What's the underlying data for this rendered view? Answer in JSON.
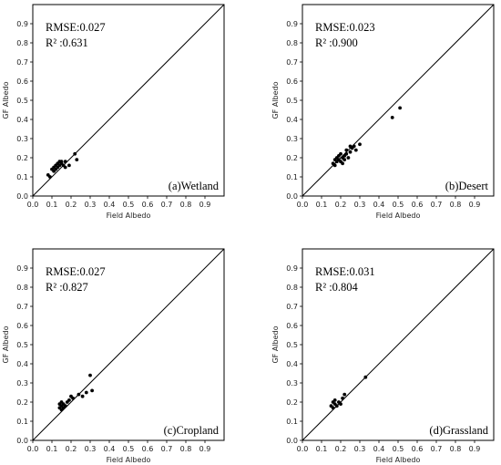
{
  "chart_data": [
    {
      "type": "scatter",
      "xlabel": "Field Albedo",
      "ylabel": "GF Albedo",
      "xlim": [
        0,
        1.0
      ],
      "ylim": [
        0,
        1.0
      ],
      "xticks": [
        "0.0",
        "0.1",
        "0.2",
        "0.3",
        "0.4",
        "0.5",
        "0.6",
        "0.7",
        "0.8",
        "0.9"
      ],
      "yticks": [
        "0.0",
        "0.1",
        "0.2",
        "0.3",
        "0.4",
        "0.5",
        "0.6",
        "0.7",
        "0.8",
        "0.9"
      ],
      "rmse_text": "RMSE:0.027",
      "r2_text": "R² :0.631",
      "label": "(a)Wetland",
      "reference_line": "1:1",
      "x": [
        0.08,
        0.09,
        0.1,
        0.11,
        0.11,
        0.12,
        0.12,
        0.13,
        0.13,
        0.14,
        0.14,
        0.15,
        0.15,
        0.16,
        0.17,
        0.17,
        0.19,
        0.22,
        0.23
      ],
      "y": [
        0.11,
        0.1,
        0.14,
        0.13,
        0.15,
        0.14,
        0.16,
        0.17,
        0.15,
        0.18,
        0.16,
        0.17,
        0.18,
        0.16,
        0.18,
        0.15,
        0.16,
        0.22,
        0.19
      ]
    },
    {
      "type": "scatter",
      "xlabel": "Field Albedo",
      "ylabel": "GF Albedo",
      "xlim": [
        0,
        1.0
      ],
      "ylim": [
        0,
        1.0
      ],
      "xticks": [
        "0.0",
        "0.1",
        "0.2",
        "0.3",
        "0.4",
        "0.5",
        "0.6",
        "0.7",
        "0.8",
        "0.9"
      ],
      "yticks": [
        "0.0",
        "0.1",
        "0.2",
        "0.3",
        "0.4",
        "0.5",
        "0.6",
        "0.7",
        "0.8",
        "0.9"
      ],
      "rmse_text": "RMSE:0.023",
      "r2_text": "R² :0.900",
      "label": "(b)Desert",
      "reference_line": "1:1",
      "x": [
        0.16,
        0.17,
        0.17,
        0.18,
        0.18,
        0.19,
        0.19,
        0.2,
        0.2,
        0.21,
        0.21,
        0.22,
        0.22,
        0.23,
        0.23,
        0.24,
        0.25,
        0.25,
        0.26,
        0.27,
        0.28,
        0.3,
        0.47,
        0.51
      ],
      "y": [
        0.17,
        0.16,
        0.19,
        0.18,
        0.2,
        0.19,
        0.21,
        0.18,
        0.22,
        0.2,
        0.17,
        0.21,
        0.19,
        0.22,
        0.24,
        0.2,
        0.23,
        0.26,
        0.25,
        0.26,
        0.24,
        0.27,
        0.41,
        0.46
      ]
    },
    {
      "type": "scatter",
      "xlabel": "Field Albedo",
      "ylabel": "GF Albedo",
      "xlim": [
        0,
        1.0
      ],
      "ylim": [
        0,
        1.0
      ],
      "xticks": [
        "0.0",
        "0.1",
        "0.2",
        "0.3",
        "0.4",
        "0.5",
        "0.6",
        "0.7",
        "0.8",
        "0.9"
      ],
      "yticks": [
        "0.0",
        "0.1",
        "0.2",
        "0.3",
        "0.4",
        "0.5",
        "0.6",
        "0.7",
        "0.8",
        "0.9"
      ],
      "rmse_text": "RMSE:0.027",
      "r2_text": "R² :0.827",
      "label": "(c)Cropland",
      "reference_line": "1:1",
      "x": [
        0.14,
        0.14,
        0.15,
        0.15,
        0.15,
        0.16,
        0.16,
        0.17,
        0.18,
        0.19,
        0.2,
        0.21,
        0.24,
        0.26,
        0.28,
        0.3,
        0.31
      ],
      "y": [
        0.17,
        0.19,
        0.16,
        0.18,
        0.2,
        0.17,
        0.19,
        0.18,
        0.2,
        0.21,
        0.23,
        0.22,
        0.24,
        0.23,
        0.25,
        0.34,
        0.26
      ]
    },
    {
      "type": "scatter",
      "xlabel": "Field Albedo",
      "ylabel": "GF Albedo",
      "xlim": [
        0,
        1.0
      ],
      "ylim": [
        0,
        1.0
      ],
      "xticks": [
        "0.0",
        "0.1",
        "0.2",
        "0.3",
        "0.4",
        "0.5",
        "0.6",
        "0.7",
        "0.8",
        "0.9"
      ],
      "yticks": [
        "0.0",
        "0.1",
        "0.2",
        "0.3",
        "0.4",
        "0.5",
        "0.6",
        "0.7",
        "0.8",
        "0.9"
      ],
      "rmse_text": "RMSE:0.031",
      "r2_text": "R² :0.804",
      "label": "(d)Grassland",
      "reference_line": "1:1",
      "x": [
        0.15,
        0.16,
        0.16,
        0.17,
        0.17,
        0.18,
        0.19,
        0.2,
        0.21,
        0.22,
        0.33
      ],
      "y": [
        0.18,
        0.2,
        0.17,
        0.19,
        0.21,
        0.18,
        0.2,
        0.19,
        0.22,
        0.24,
        0.33
      ]
    }
  ]
}
